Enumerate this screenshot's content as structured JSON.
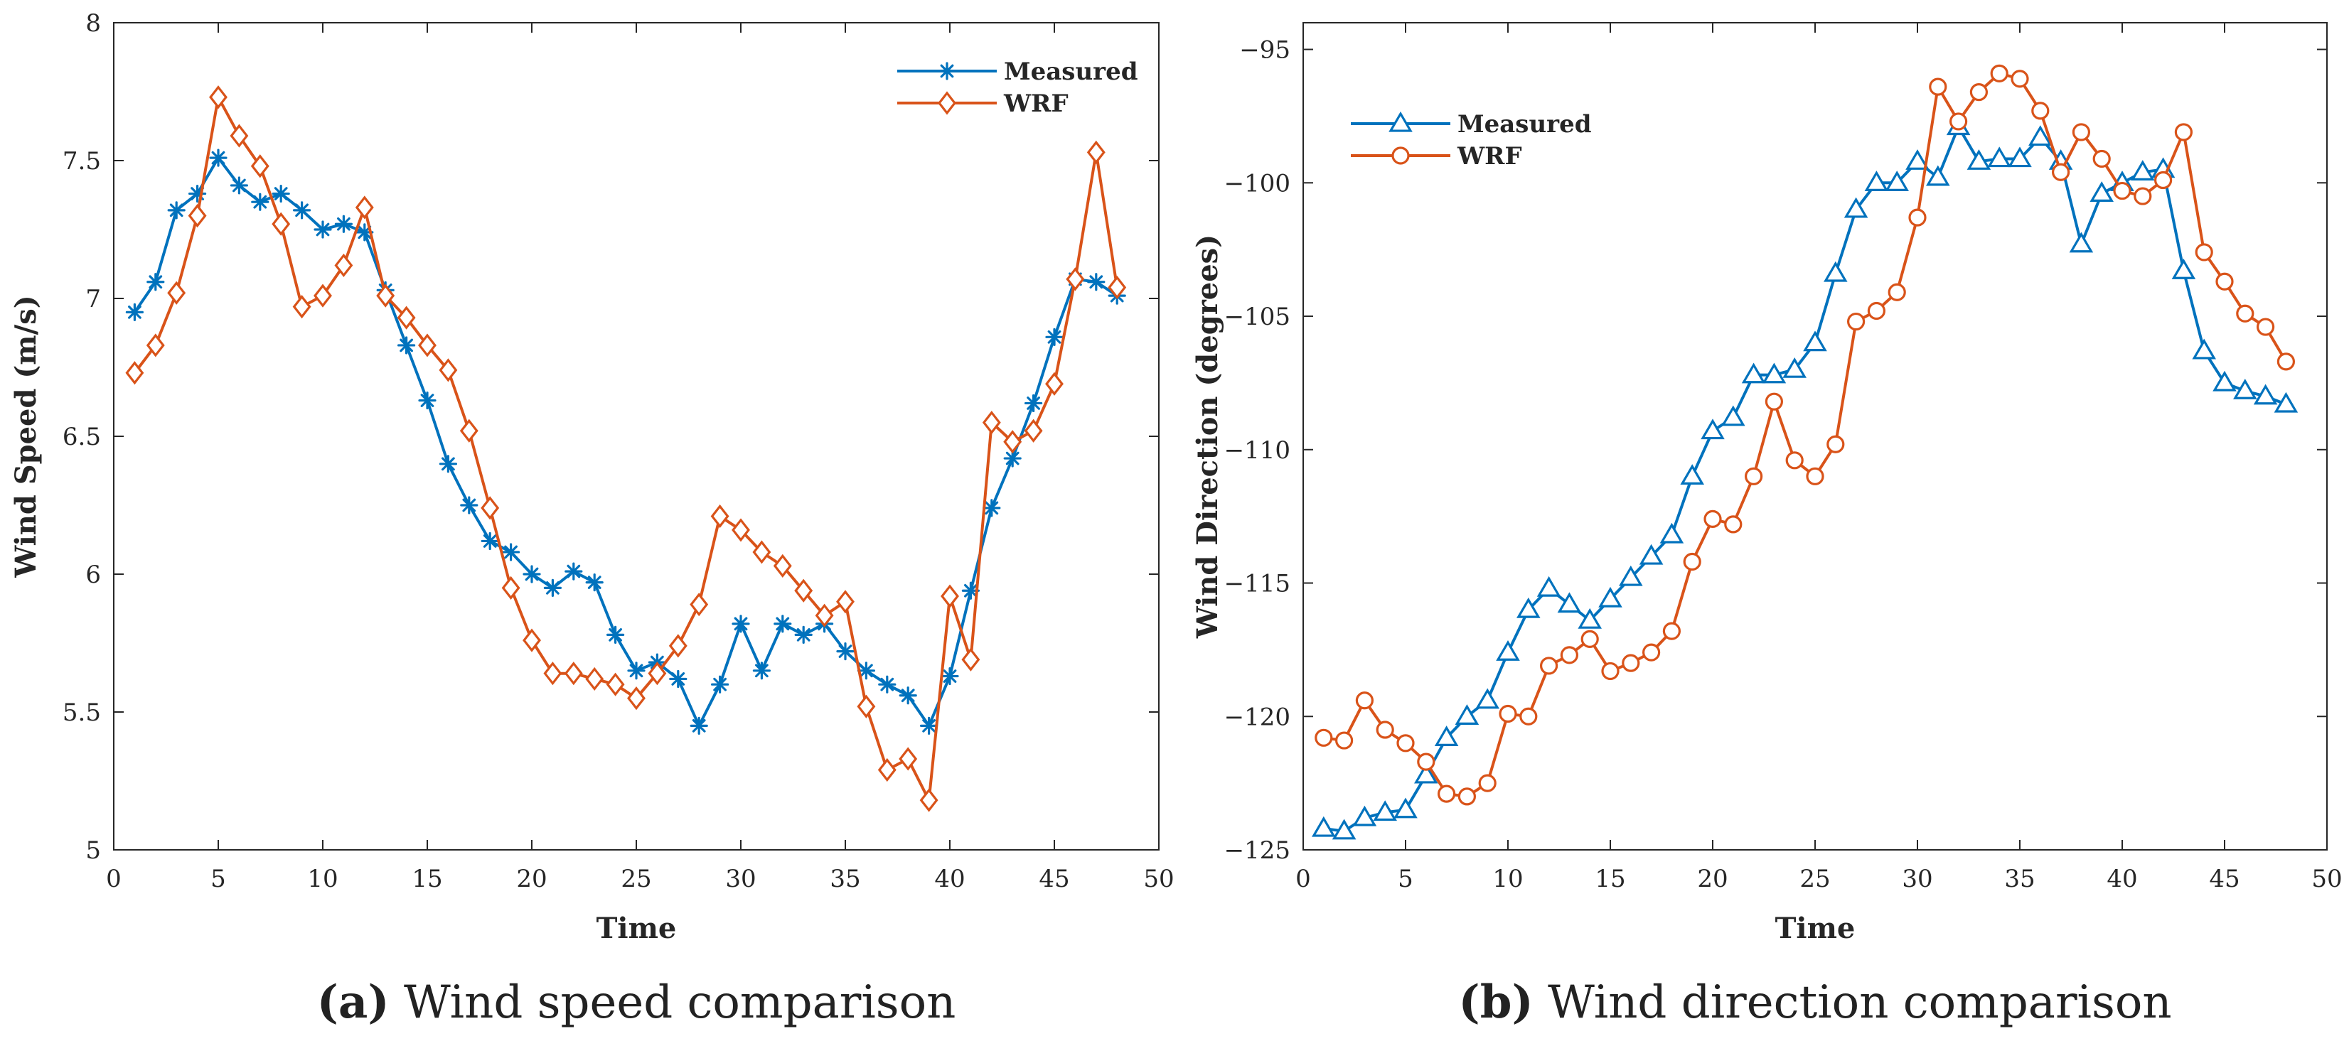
{
  "colors": {
    "measured": "#0072BD",
    "wrf": "#D95319"
  },
  "chart_data": [
    {
      "type": "line",
      "panel": "a",
      "caption_label": "(a)",
      "caption_text": "Wind speed comparison",
      "xlabel": "Time",
      "ylabel": "Wind Speed (m/s)",
      "xlim": [
        0,
        50
      ],
      "ylim": [
        5,
        8
      ],
      "xticks": [
        0,
        5,
        10,
        15,
        20,
        25,
        30,
        35,
        40,
        45,
        50
      ],
      "yticks": [
        5,
        5.5,
        6,
        6.5,
        7,
        7.5,
        8
      ],
      "ytick_labels": [
        "5",
        "5.5",
        "6",
        "6.5",
        "7",
        "7.5",
        "8"
      ],
      "legend_position": "top-right",
      "x": [
        1,
        2,
        3,
        4,
        5,
        6,
        7,
        8,
        9,
        10,
        11,
        12,
        13,
        14,
        15,
        16,
        17,
        18,
        19,
        20,
        21,
        22,
        23,
        24,
        25,
        26,
        27,
        28,
        29,
        30,
        31,
        32,
        33,
        34,
        35,
        36,
        37,
        38,
        39,
        40,
        41,
        42,
        43,
        44,
        45,
        46,
        47,
        48
      ],
      "series": [
        {
          "name": "Measured",
          "marker": "asterisk",
          "values": [
            6.95,
            7.06,
            7.32,
            7.38,
            7.51,
            7.41,
            7.35,
            7.38,
            7.32,
            7.25,
            7.27,
            7.24,
            7.03,
            6.83,
            6.63,
            6.4,
            6.25,
            6.12,
            6.08,
            6.0,
            5.95,
            6.01,
            5.97,
            5.78,
            5.65,
            5.68,
            5.62,
            5.45,
            5.6,
            5.82,
            5.65,
            5.82,
            5.78,
            5.82,
            5.72,
            5.65,
            5.6,
            5.56,
            5.45,
            5.63,
            5.94,
            6.24,
            6.42,
            6.62,
            6.86,
            7.07,
            7.06,
            7.01
          ]
        },
        {
          "name": "WRF",
          "marker": "diamond",
          "values": [
            6.73,
            6.83,
            7.02,
            7.3,
            7.73,
            7.59,
            7.48,
            7.27,
            6.97,
            7.01,
            7.12,
            7.33,
            7.01,
            6.93,
            6.83,
            6.74,
            6.52,
            6.24,
            5.95,
            5.76,
            5.64,
            5.64,
            5.62,
            5.6,
            5.55,
            5.64,
            5.74,
            5.89,
            6.21,
            6.16,
            6.08,
            6.03,
            5.94,
            5.85,
            5.9,
            5.52,
            5.29,
            5.33,
            5.18,
            5.92,
            5.69,
            6.55,
            6.48,
            6.52,
            6.69,
            7.07,
            7.53,
            7.04
          ]
        }
      ]
    },
    {
      "type": "line",
      "panel": "b",
      "caption_label": "(b)",
      "caption_text": "Wind direction comparison",
      "xlabel": "Time",
      "ylabel": "Wind Direction (degrees)",
      "xlim": [
        0,
        50
      ],
      "ylim": [
        -125,
        -94
      ],
      "xticks": [
        0,
        5,
        10,
        15,
        20,
        25,
        30,
        35,
        40,
        45,
        50
      ],
      "yticks": [
        -125,
        -120,
        -115,
        -110,
        -105,
        -100,
        -95
      ],
      "ytick_labels": [
        "−125",
        "−120",
        "−115",
        "−110",
        "−105",
        "−100",
        "−95"
      ],
      "legend_position": "top-left",
      "x": [
        1,
        2,
        3,
        4,
        5,
        6,
        7,
        8,
        9,
        10,
        11,
        12,
        13,
        14,
        15,
        16,
        17,
        18,
        19,
        20,
        21,
        22,
        23,
        24,
        25,
        26,
        27,
        28,
        29,
        30,
        31,
        32,
        33,
        34,
        35,
        36,
        37,
        38,
        39,
        40,
        41,
        42,
        43,
        44,
        45,
        46,
        47,
        48
      ],
      "series": [
        {
          "name": "Measured",
          "marker": "triangle",
          "values": [
            -124.2,
            -124.3,
            -123.8,
            -123.6,
            -123.5,
            -122.2,
            -120.8,
            -120.0,
            -119.4,
            -117.6,
            -116.0,
            -115.2,
            -115.8,
            -116.4,
            -115.6,
            -114.8,
            -114.0,
            -113.2,
            -111.0,
            -109.3,
            -108.8,
            -107.2,
            -107.2,
            -107.0,
            -106.0,
            -103.4,
            -101.0,
            -100.0,
            -100.0,
            -99.2,
            -99.8,
            -97.9,
            -99.2,
            -99.1,
            -99.1,
            -98.3,
            -99.2,
            -102.3,
            -100.4,
            -100.0,
            -99.6,
            -99.5,
            -103.3,
            -106.3,
            -107.5,
            -107.8,
            -108.0,
            -108.3
          ]
        },
        {
          "name": "WRF",
          "marker": "circle",
          "values": [
            -120.8,
            -120.9,
            -119.4,
            -120.5,
            -121.0,
            -121.7,
            -122.9,
            -123.0,
            -122.5,
            -119.9,
            -120.0,
            -118.1,
            -117.7,
            -117.1,
            -118.3,
            -118.0,
            -117.6,
            -116.8,
            -114.2,
            -112.6,
            -112.8,
            -111.0,
            -108.2,
            -110.4,
            -111.0,
            -109.8,
            -105.2,
            -104.8,
            -104.1,
            -101.3,
            -96.4,
            -97.7,
            -96.6,
            -95.9,
            -96.1,
            -97.3,
            -99.6,
            -98.1,
            -99.1,
            -100.3,
            -100.5,
            -99.9,
            -98.1,
            -102.6,
            -103.7,
            -104.9,
            -105.4,
            -106.7
          ]
        }
      ]
    }
  ]
}
